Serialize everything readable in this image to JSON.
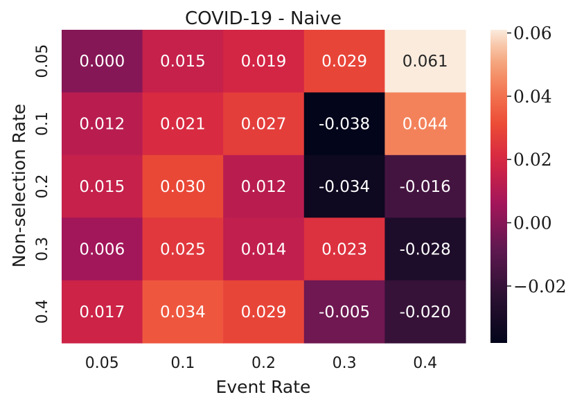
{
  "chart_data": {
    "type": "heatmap",
    "title": "COVID-19 - Naive",
    "xlabel": "Event Rate",
    "ylabel": "Non-selection Rate",
    "x_categories": [
      "0.05",
      "0.1",
      "0.2",
      "0.3",
      "0.4"
    ],
    "y_categories": [
      "0.05",
      "0.1",
      "0.2",
      "0.3",
      "0.4"
    ],
    "values": [
      [
        0.0,
        0.015,
        0.019,
        0.029,
        0.061
      ],
      [
        0.012,
        0.021,
        0.027,
        -0.038,
        0.044
      ],
      [
        0.015,
        0.03,
        0.012,
        -0.034,
        -0.016
      ],
      [
        0.006,
        0.025,
        0.014,
        0.023,
        -0.028
      ],
      [
        0.017,
        0.034,
        0.029,
        -0.005,
        -0.02
      ]
    ],
    "cell_labels": [
      [
        "0.000",
        "0.015",
        "0.019",
        "0.029",
        "0.061"
      ],
      [
        "0.012",
        "0.021",
        "0.027",
        "-0.038",
        "0.044"
      ],
      [
        "0.015",
        "0.030",
        "0.012",
        "-0.034",
        "-0.016"
      ],
      [
        "0.006",
        "0.025",
        "0.014",
        "0.023",
        "-0.028"
      ],
      [
        "0.017",
        "0.034",
        "0.029",
        "-0.005",
        "-0.020"
      ]
    ],
    "colormap": "rocket",
    "vmin": -0.038,
    "vmax": 0.061,
    "colorbar_ticks": [
      {
        "value": 0.06,
        "label": "0.06"
      },
      {
        "value": 0.04,
        "label": "0.04"
      },
      {
        "value": 0.02,
        "label": "0.02"
      },
      {
        "value": 0.0,
        "label": "0.00"
      },
      {
        "value": -0.02,
        "label": "−0.02"
      }
    ],
    "grid": false,
    "legend": "colorbar-right"
  }
}
